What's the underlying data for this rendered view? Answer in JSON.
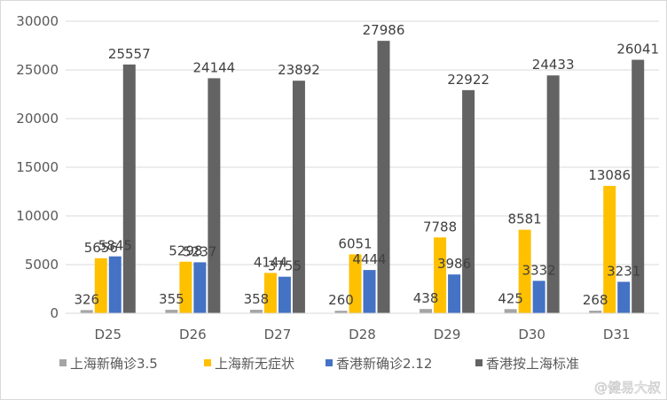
{
  "chart_data": {
    "type": "bar",
    "categories": [
      "D25",
      "D26",
      "D27",
      "D28",
      "D29",
      "D30",
      "D31"
    ],
    "series": [
      {
        "name": "上海新确诊3.5",
        "color": "#a5a5a5",
        "values": [
          326,
          355,
          358,
          260,
          438,
          425,
          268
        ]
      },
      {
        "name": "上海新无症状",
        "color": "#ffc000",
        "values": [
          5656,
          5298,
          4144,
          6051,
          7788,
          8581,
          13086
        ]
      },
      {
        "name": "香港新确诊2.12",
        "color": "#4472c4",
        "values": [
          5845,
          5237,
          3755,
          4444,
          3986,
          3332,
          3231
        ]
      },
      {
        "name": "香港按上海标准",
        "color": "#636363",
        "values": [
          25557,
          24144,
          23892,
          27986,
          22922,
          24433,
          26041
        ]
      }
    ],
    "ylim": [
      0,
      30000
    ],
    "yticks": [
      0,
      5000,
      10000,
      15000,
      20000,
      25000,
      30000
    ],
    "grid": true,
    "legend_position": "bottom"
  },
  "watermark": {
    "text": "@健易大叔"
  }
}
